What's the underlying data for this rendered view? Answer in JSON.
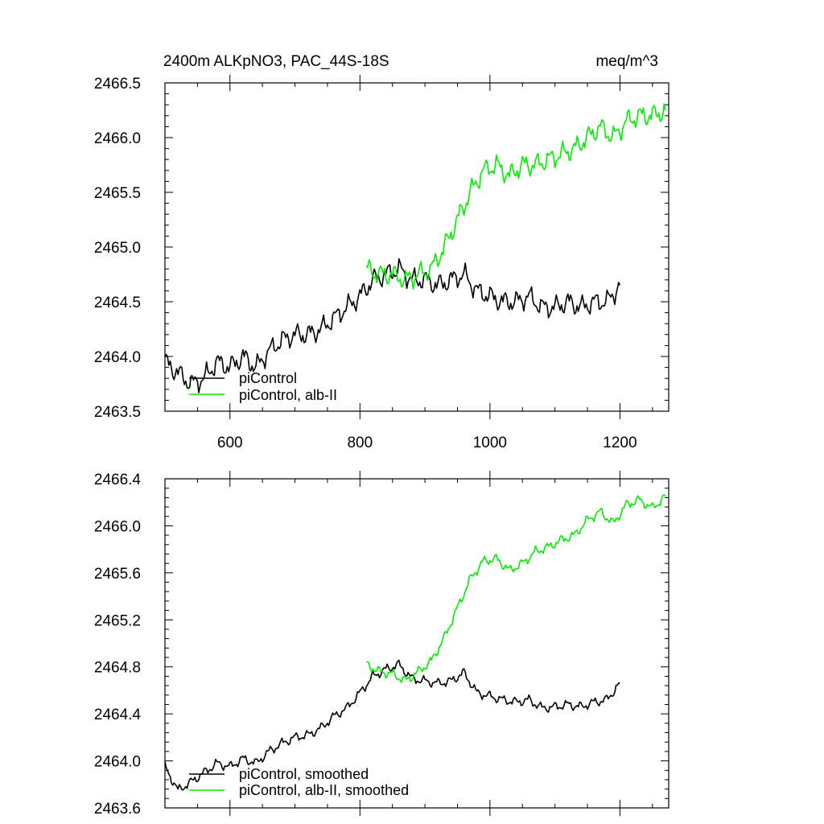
{
  "chart_data": [
    {
      "type": "line",
      "title": "2400m ALKpNO3, PAC_44S-18S",
      "units": "meq/m^3",
      "xlim": [
        500,
        1275
      ],
      "ylim": [
        2463.5,
        2466.5
      ],
      "x_ticks": [
        "600",
        "800",
        "1000",
        "1200"
      ],
      "y_ticks": [
        "2466.5",
        "2466.0",
        "2465.5",
        "2465.0",
        "2464.5",
        "2464.0",
        "2463.5"
      ],
      "grid": false,
      "legend_position": "bottom-left",
      "series": [
        {
          "name": "piControl",
          "color": "#000000",
          "x": [
            500,
            520,
            540,
            560,
            580,
            600,
            620,
            640,
            660,
            680,
            700,
            720,
            740,
            760,
            780,
            800,
            820,
            840,
            860,
            880,
            900,
            920,
            940,
            960,
            980,
            1000,
            1020,
            1040,
            1060,
            1080,
            1100,
            1120,
            1140,
            1160,
            1180,
            1200
          ],
          "y": [
            2463.95,
            2463.85,
            2463.75,
            2463.8,
            2463.95,
            2463.9,
            2464.0,
            2463.9,
            2464.05,
            2464.15,
            2464.2,
            2464.2,
            2464.25,
            2464.35,
            2464.45,
            2464.55,
            2464.7,
            2464.75,
            2464.8,
            2464.7,
            2464.7,
            2464.65,
            2464.7,
            2464.75,
            2464.6,
            2464.55,
            2464.5,
            2464.5,
            2464.55,
            2464.45,
            2464.45,
            2464.5,
            2464.45,
            2464.5,
            2464.5,
            2464.65
          ]
        },
        {
          "name": "piControl, alb-II",
          "color": "#00ee00",
          "x": [
            810,
            830,
            850,
            870,
            890,
            910,
            930,
            950,
            970,
            990,
            1010,
            1030,
            1050,
            1070,
            1090,
            1110,
            1130,
            1150,
            1170,
            1190,
            1210,
            1230,
            1250,
            1270
          ],
          "y": [
            2464.8,
            2464.75,
            2464.75,
            2464.7,
            2464.75,
            2464.8,
            2465.0,
            2465.25,
            2465.5,
            2465.7,
            2465.75,
            2465.65,
            2465.75,
            2465.75,
            2465.8,
            2465.85,
            2465.9,
            2466.0,
            2466.1,
            2466.0,
            2466.15,
            2466.2,
            2466.2,
            2466.25
          ]
        }
      ]
    },
    {
      "type": "line",
      "xlim": [
        500,
        1275
      ],
      "ylim": [
        2463.6,
        2466.4
      ],
      "x_ticks": [],
      "y_ticks": [
        "2466.4",
        "2466.0",
        "2465.6",
        "2465.2",
        "2464.8",
        "2464.4",
        "2464.0",
        "2463.6"
      ],
      "grid": false,
      "legend_position": "bottom-left",
      "series": [
        {
          "name": "piControl, smoothed",
          "color": "#000000",
          "x": [
            500,
            520,
            540,
            560,
            580,
            600,
            620,
            640,
            660,
            680,
            700,
            720,
            740,
            760,
            780,
            800,
            820,
            840,
            860,
            880,
            900,
            920,
            940,
            960,
            980,
            1000,
            1020,
            1040,
            1060,
            1080,
            1100,
            1120,
            1140,
            1160,
            1180,
            1200
          ],
          "y": [
            2463.95,
            2463.75,
            2463.82,
            2463.9,
            2463.98,
            2463.95,
            2464.02,
            2463.98,
            2464.08,
            2464.15,
            2464.2,
            2464.22,
            2464.28,
            2464.38,
            2464.45,
            2464.58,
            2464.72,
            2464.78,
            2464.82,
            2464.7,
            2464.68,
            2464.66,
            2464.68,
            2464.75,
            2464.58,
            2464.55,
            2464.52,
            2464.5,
            2464.52,
            2464.45,
            2464.46,
            2464.48,
            2464.46,
            2464.5,
            2464.52,
            2464.66
          ]
        },
        {
          "name": "piControl, alb-II, smoothed",
          "color": "#00ee00",
          "x": [
            810,
            830,
            850,
            870,
            890,
            910,
            930,
            950,
            970,
            990,
            1010,
            1030,
            1050,
            1070,
            1090,
            1110,
            1130,
            1150,
            1170,
            1190,
            1210,
            1230,
            1250,
            1270
          ],
          "y": [
            2464.82,
            2464.76,
            2464.74,
            2464.68,
            2464.76,
            2464.85,
            2465.05,
            2465.3,
            2465.55,
            2465.7,
            2465.72,
            2465.62,
            2465.68,
            2465.78,
            2465.82,
            2465.88,
            2465.92,
            2466.05,
            2466.12,
            2466.02,
            2466.18,
            2466.22,
            2466.15,
            2466.25
          ]
        }
      ]
    }
  ]
}
